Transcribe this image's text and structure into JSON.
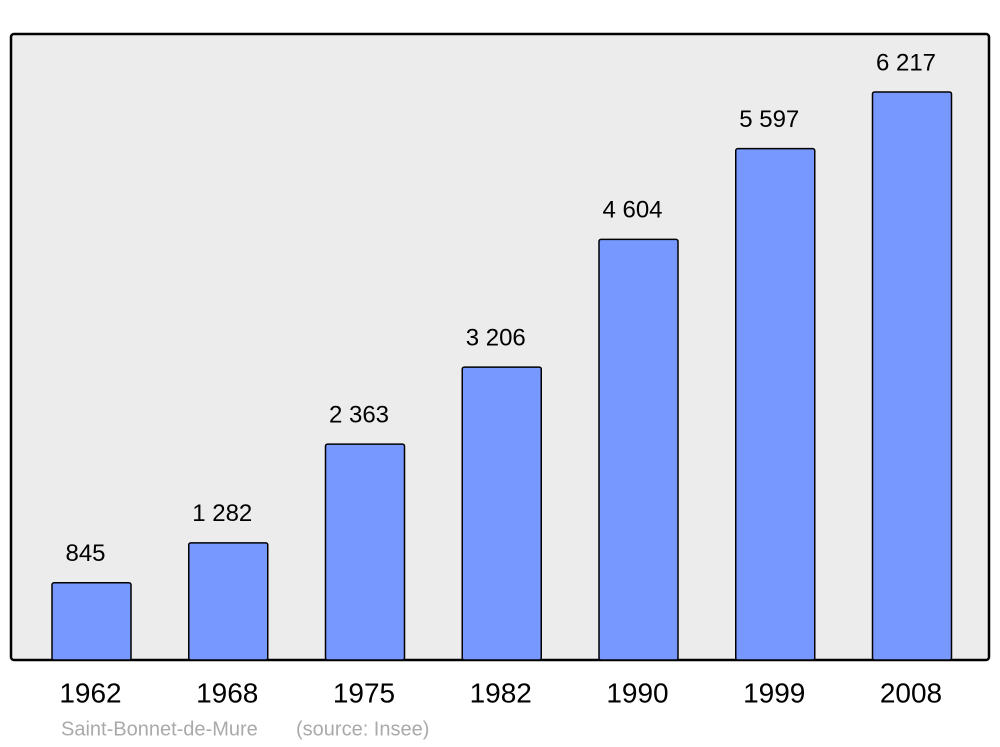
{
  "chart_data": {
    "type": "bar",
    "categories": [
      "1962",
      "1968",
      "1975",
      "1982",
      "1990",
      "1999",
      "2008"
    ],
    "values": [
      845,
      1282,
      2363,
      3206,
      4604,
      5597,
      6217
    ],
    "value_labels": [
      "845",
      "1 282",
      "2 363",
      "3 206",
      "4 604",
      "5 597",
      "6 217"
    ],
    "color": "#7799ff",
    "place": "Saint-Bonnet-de-Mure",
    "source": "(source: Insee)"
  }
}
